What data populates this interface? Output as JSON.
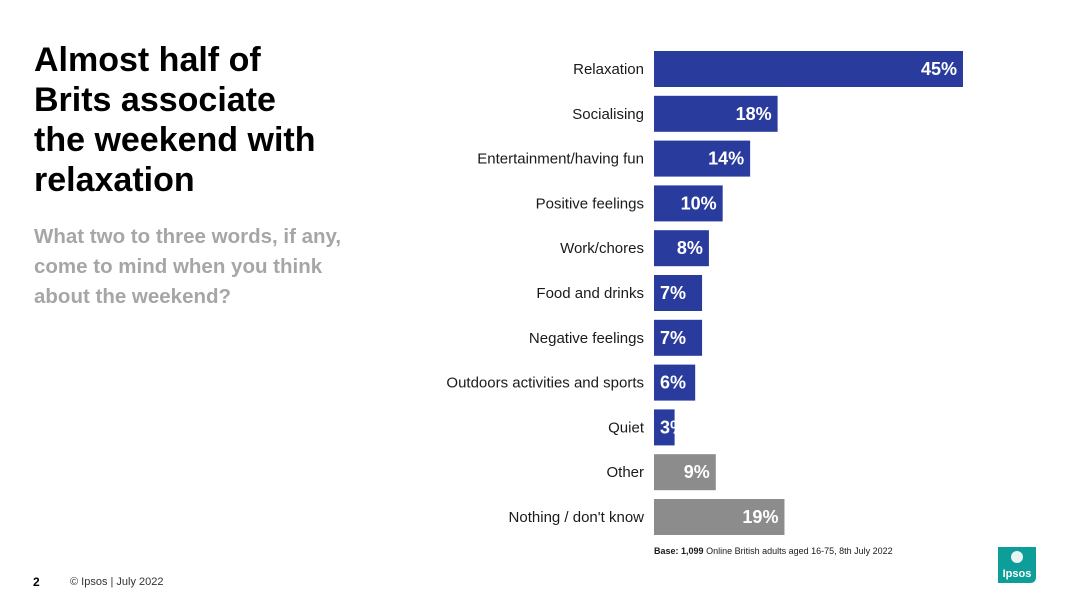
{
  "slide": {
    "title": "Almost half of\nBrits associate\nthe weekend with\nrelaxation",
    "subtitle": "What two to three words, if any,\ncome to mind when you think\nabout the weekend?",
    "base_label": "Base: 1,099",
    "base_text": "Online British adults aged 16-75, 8th July 2022",
    "page_number": "2",
    "footer": "© Ipsos | July 2022",
    "logo_text": "Ipsos"
  },
  "colors": {
    "primary": "#2a3b9e",
    "secondary": "#8c8c8c",
    "logo": "#0e9e9a"
  },
  "chart_data": {
    "type": "bar",
    "orientation": "horizontal",
    "categories": [
      "Relaxation",
      "Socialising",
      "Entertainment/having fun",
      "Positive feelings",
      "Work/chores",
      "Food and drinks",
      "Negative feelings",
      "Outdoors activities and sports",
      "Quiet",
      "Other",
      "Nothing / don't know"
    ],
    "values": [
      45,
      18,
      14,
      10,
      8,
      7,
      7,
      6,
      3,
      9,
      19
    ],
    "value_labels": [
      "45%",
      "18%",
      "14%",
      "10%",
      "8%",
      "7%",
      "7%",
      "6%",
      "3%",
      "9%",
      "19%"
    ],
    "bar_color_groups": [
      "primary",
      "primary",
      "primary",
      "primary",
      "primary",
      "primary",
      "primary",
      "primary",
      "primary",
      "secondary",
      "secondary"
    ],
    "unit": "%",
    "xlim": [
      0,
      45
    ],
    "title": "",
    "xlabel": "",
    "ylabel": "",
    "grid": false,
    "legend": "none"
  }
}
